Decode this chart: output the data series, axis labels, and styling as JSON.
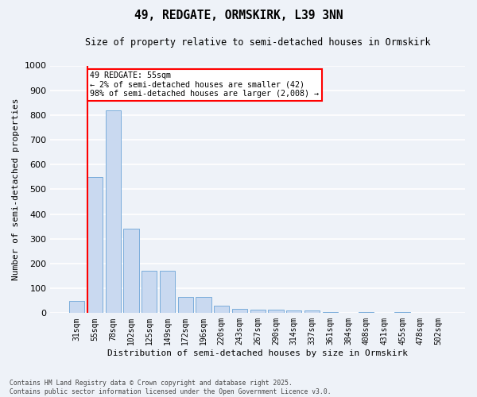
{
  "title": "49, REDGATE, ORMSKIRK, L39 3NN",
  "subtitle": "Size of property relative to semi-detached houses in Ormskirk",
  "xlabel": "Distribution of semi-detached houses by size in Ormskirk",
  "ylabel": "Number of semi-detached properties",
  "categories": [
    "31sqm",
    "55sqm",
    "78sqm",
    "102sqm",
    "125sqm",
    "149sqm",
    "172sqm",
    "196sqm",
    "220sqm",
    "243sqm",
    "267sqm",
    "290sqm",
    "314sqm",
    "337sqm",
    "361sqm",
    "384sqm",
    "408sqm",
    "431sqm",
    "455sqm",
    "478sqm",
    "502sqm"
  ],
  "values": [
    50,
    550,
    820,
    340,
    170,
    170,
    65,
    65,
    30,
    17,
    14,
    14,
    10,
    10,
    5,
    0,
    5,
    0,
    5,
    0,
    0
  ],
  "bar_color": "#c9d9f0",
  "bar_edge_color": "#7aaddb",
  "highlight_bar_index": 1,
  "highlight_color": "#ff0000",
  "ylim": [
    0,
    1000
  ],
  "yticks": [
    0,
    100,
    200,
    300,
    400,
    500,
    600,
    700,
    800,
    900,
    1000
  ],
  "annotation_title": "49 REDGATE: 55sqm",
  "annotation_line1": "← 2% of semi-detached houses are smaller (42)",
  "annotation_line2": "98% of semi-detached houses are larger (2,008) →",
  "annotation_box_color": "#ffffff",
  "annotation_box_edge": "#ff0000",
  "footer_line1": "Contains HM Land Registry data © Crown copyright and database right 2025.",
  "footer_line2": "Contains public sector information licensed under the Open Government Licence v3.0.",
  "background_color": "#eef2f8",
  "grid_color": "#ffffff"
}
